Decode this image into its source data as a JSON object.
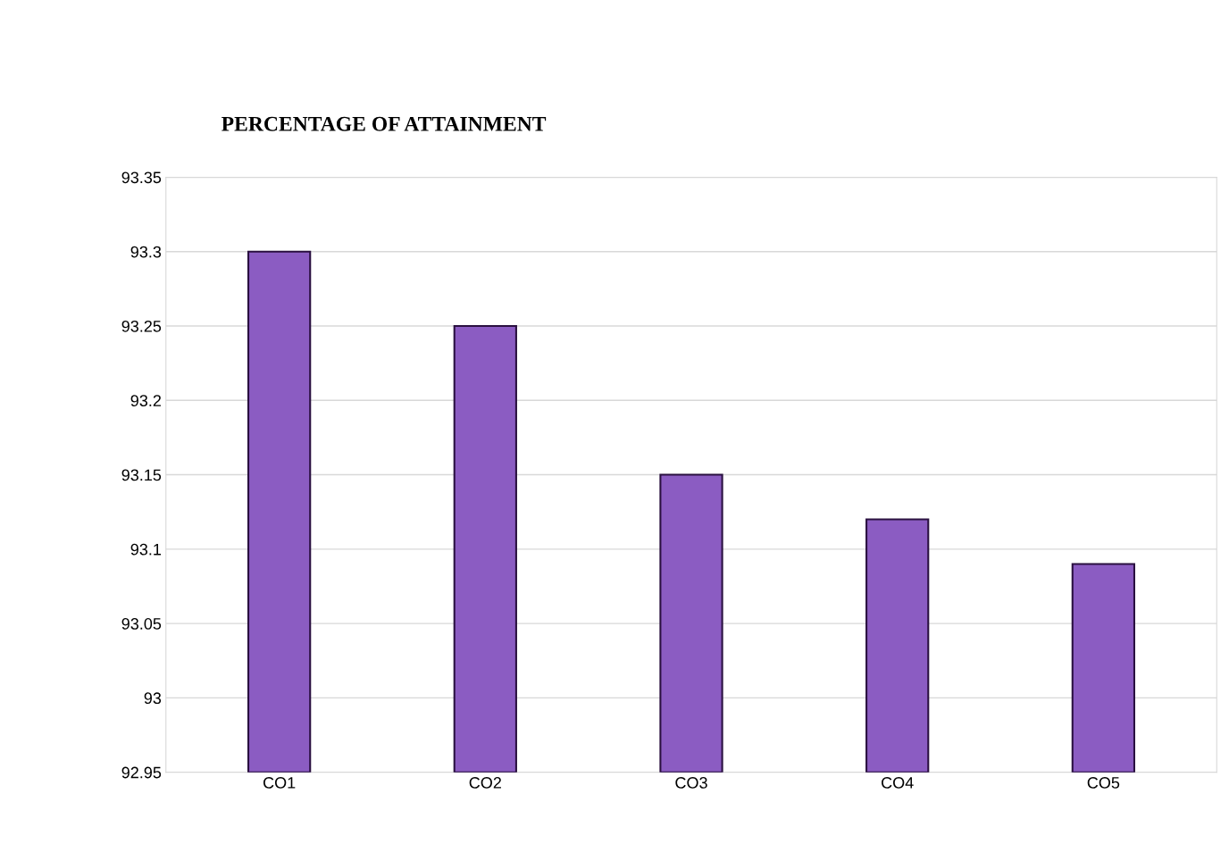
{
  "chart_data": {
    "type": "bar",
    "title": "PERCENTAGE OF ATTAINMENT",
    "categories": [
      "CO1",
      "CO2",
      "CO3",
      "CO4",
      "CO5"
    ],
    "values": [
      93.3,
      93.25,
      93.15,
      93.12,
      93.09
    ],
    "color": "#8b5cc2",
    "ylim": [
      92.95,
      93.35
    ],
    "yticks": [
      92.95,
      93,
      93.05,
      93.1,
      93.15,
      93.2,
      93.25,
      93.3,
      93.35
    ],
    "grid": "y",
    "legend": false
  }
}
